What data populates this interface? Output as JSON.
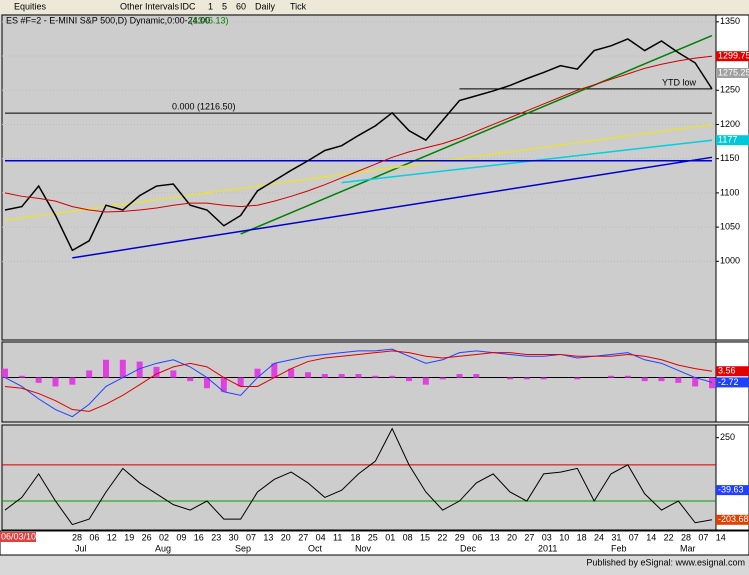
{
  "toolbar": {
    "items": [
      "Equities",
      "Other Intervals",
      "IDC",
      "1",
      "5",
      "60",
      "Daily",
      "Tick"
    ]
  },
  "chart_data": [
    {
      "type": "line",
      "title": "ES #F=2 - E-MINI S&P 500,D) Dynamic,0:00-24:00",
      "title_value": "(1346.13)",
      "ylim": [
        885,
        1360
      ],
      "yticks": [
        1000,
        1050,
        1100,
        1150,
        1200,
        1250,
        1300,
        1350
      ],
      "grid": true,
      "series": [
        {
          "color": "#000000",
          "values": [
            1075,
            1080,
            1110,
            1067,
            1016,
            1030,
            1082,
            1075,
            1096,
            1110,
            1113,
            1082,
            1075,
            1052,
            1067,
            1103,
            1118,
            1133,
            1147,
            1162,
            1169,
            1184,
            1198,
            1217,
            1191,
            1177,
            1206,
            1235,
            1242,
            1249,
            1257,
            1267,
            1276,
            1286,
            1281,
            1308,
            1315,
            1325,
            1308,
            1322,
            1305,
            1290,
            1252
          ]
        },
        {
          "color": "#d00000",
          "values": [
            1100,
            1095,
            1092,
            1088,
            1080,
            1075,
            1072,
            1073,
            1075,
            1078,
            1082,
            1085,
            1085,
            1082,
            1080,
            1082,
            1088,
            1095,
            1103,
            1112,
            1122,
            1132,
            1142,
            1152,
            1160,
            1166,
            1172,
            1180,
            1190,
            1200,
            1210,
            1220,
            1230,
            1240,
            1250,
            1258,
            1266,
            1274,
            1282,
            1288,
            1293,
            1297,
            1299.75
          ]
        }
      ],
      "trendlines": [
        {
          "color": "#008000",
          "x": [
            14,
            42
          ],
          "values": [
            1040,
            1330
          ]
        },
        {
          "color": "#0000cc",
          "x": [
            4,
            42
          ],
          "values": [
            1005,
            1152
          ]
        },
        {
          "color": "#e8e040",
          "x": [
            0,
            42
          ],
          "values": [
            1060,
            1200
          ]
        },
        {
          "color": "#00d0e0",
          "x": [
            20,
            42
          ],
          "values": [
            1115,
            1177
          ]
        },
        {
          "color": "#0000cc",
          "x": [
            0,
            42
          ],
          "values": [
            1147,
            1147
          ]
        }
      ],
      "levels": [
        {
          "value": 1216.5,
          "label": "0.000 (1216.50)",
          "x": [
            0,
            42
          ]
        },
        {
          "value": 1252,
          "label": "YTD low",
          "x": [
            27,
            42
          ]
        }
      ],
      "markers": [
        {
          "value": 1299.75,
          "color": "#e00000"
        },
        {
          "value": 1275.25,
          "color": "#a0a0a0"
        },
        {
          "value": 1177,
          "color": "#00c8d8"
        }
      ]
    },
    {
      "type": "macd",
      "ylim": [
        -25,
        20
      ],
      "series": [
        {
          "color": "#2040ff",
          "values": [
            0,
            -5,
            -12,
            -18,
            -22,
            -15,
            -5,
            0,
            5,
            8,
            10,
            6,
            0,
            -8,
            -10,
            0,
            8,
            10,
            12,
            13,
            14,
            15,
            15,
            16,
            12,
            8,
            10,
            14,
            15,
            14,
            13,
            12,
            12,
            13,
            11,
            12,
            13,
            14,
            10,
            8,
            4,
            0,
            -2.72
          ]
        },
        {
          "color": "#e00000",
          "values": [
            -5,
            -6,
            -9,
            -13,
            -18,
            -19,
            -15,
            -10,
            -4,
            2,
            6,
            8,
            6,
            0,
            -5,
            -5,
            0,
            5,
            9,
            11,
            12,
            13,
            14,
            15,
            14,
            12,
            11,
            12,
            13,
            14,
            14,
            13,
            13,
            13,
            12,
            12,
            12,
            13,
            12,
            10,
            7,
            5,
            3.56
          ]
        }
      ],
      "histogram": {
        "color": "#e040e0",
        "values": [
          5,
          1,
          -3,
          -5,
          -4,
          4,
          10,
          10,
          9,
          6,
          4,
          -2,
          -6,
          -8,
          -5,
          5,
          8,
          5,
          3,
          2,
          2,
          2,
          1,
          1,
          -2,
          -4,
          -1,
          2,
          2,
          0,
          -1,
          -1,
          -1,
          0,
          -1,
          0,
          1,
          1,
          -2,
          -2,
          -3,
          -5,
          -6
        ]
      },
      "markers": [
        {
          "value": 3.56,
          "color": "#e00000"
        },
        {
          "value": -2.72,
          "color": "#2040ff"
        }
      ]
    },
    {
      "type": "line",
      "ylim": [
        -260,
        320
      ],
      "yticks": [
        250
      ],
      "series": [
        {
          "color": "#000000",
          "values": [
            -150,
            -80,
            50,
            -100,
            -230,
            -200,
            -50,
            80,
            0,
            -60,
            -120,
            -150,
            -100,
            -200,
            -200,
            -50,
            20,
            60,
            0,
            -80,
            -40,
            50,
            120,
            300,
            100,
            -50,
            -150,
            -100,
            0,
            50,
            -50,
            -100,
            50,
            60,
            80,
            -100,
            50,
            100,
            -60,
            -150,
            -100,
            -220,
            -203.68
          ]
        }
      ],
      "levels": [
        {
          "value": 100,
          "color": "#d00000"
        },
        {
          "value": -100,
          "color": "#00a000"
        }
      ],
      "markers": [
        {
          "value": -203.68,
          "color": "#e04000"
        },
        {
          "value": -39.63,
          "color": "#2040ff"
        }
      ]
    }
  ],
  "x_axis": {
    "start": "06/03/10",
    "days": [
      "28",
      "06",
      "12",
      "19",
      "26",
      "02",
      "09",
      "16",
      "23",
      "30",
      "07",
      "13",
      "20",
      "27",
      "04",
      "11",
      "18",
      "25",
      "01",
      "08",
      "15",
      "22",
      "29",
      "06",
      "13",
      "20",
      "27",
      "03",
      "10",
      "18",
      "24",
      "31",
      "07",
      "14",
      "22",
      "28",
      "07",
      "14"
    ],
    "months": [
      "Jul",
      "Aug",
      "Sep",
      "Oct",
      "Nov",
      "Dec",
      "2011",
      "Feb",
      "Mar"
    ]
  },
  "footer": "Published by eSignal: www.esignal.com"
}
